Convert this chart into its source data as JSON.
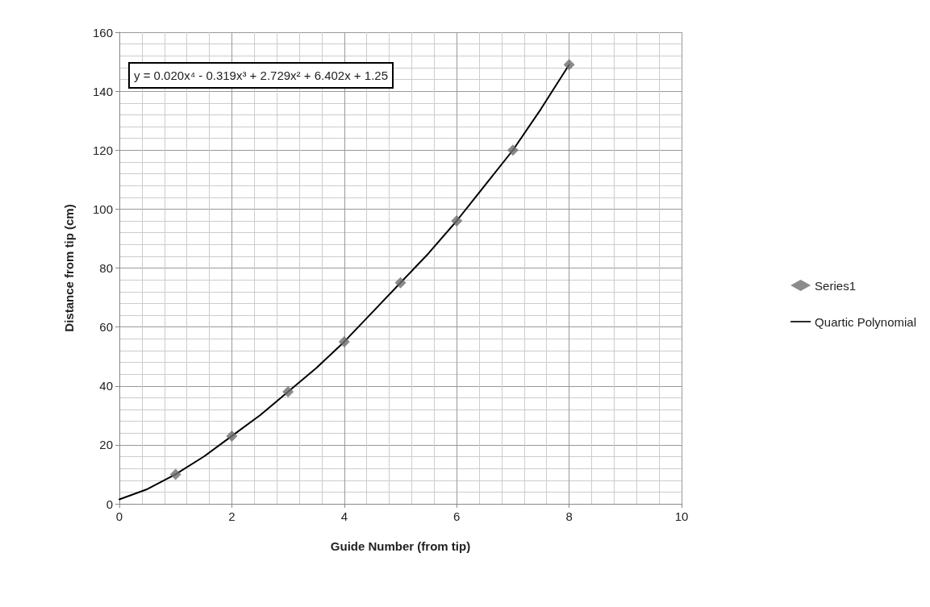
{
  "chart_data": {
    "type": "scatter",
    "xlabel": "Guide Number (from tip)",
    "ylabel": "Distance from tip (cm)",
    "annotations": [
      "y = 0.020x⁴ - 0.319x³ + 2.729x² + 6.402x + 1.25"
    ],
    "xlim": [
      0,
      10
    ],
    "xticks": [
      0,
      2,
      4,
      6,
      8,
      10
    ],
    "ylim": [
      0,
      160
    ],
    "yticks": [
      0,
      20,
      40,
      60,
      80,
      100,
      120,
      140,
      160
    ],
    "grid": true,
    "legend": "right",
    "series": [
      {
        "name": "Series1",
        "marker": "diamond",
        "color": "#6e6e6e",
        "x": [
          1,
          2,
          3,
          4,
          5,
          6,
          7,
          8
        ],
        "values": [
          10,
          23,
          38,
          55,
          75,
          96,
          120,
          149
        ]
      },
      {
        "name": "Quartic Polynomial",
        "type": "line",
        "marker": "none",
        "line_style": "solid",
        "color": "#000000",
        "x": [
          0,
          0.5,
          1,
          1.5,
          2,
          2.5,
          3,
          3.5,
          4,
          4.5,
          5,
          5.5,
          6,
          6.5,
          7,
          7.5,
          8
        ],
        "values": [
          1.5,
          5,
          10,
          16,
          23,
          30,
          38,
          46,
          55,
          65,
          75,
          85,
          96,
          108,
          120,
          134,
          149
        ]
      }
    ]
  }
}
